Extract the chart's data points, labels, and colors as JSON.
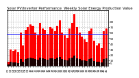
{
  "title": "Solar PV/Inverter Performance  Weekly Solar Energy Production Value",
  "bar_values": [
    1.5,
    6.0,
    5.5,
    6.0,
    5.0,
    12.0,
    7.5,
    13.0,
    14.0,
    15.0,
    14.5,
    12.0,
    11.0,
    15.5,
    13.5,
    13.0,
    11.5,
    14.0,
    13.5,
    12.5,
    14.5,
    16.5,
    12.0,
    11.0,
    10.0,
    13.5,
    15.5,
    18.5,
    14.0,
    12.0,
    10.5,
    9.5,
    8.5,
    12.5,
    13.5,
    9.0,
    7.5,
    8.0,
    6.5,
    12.5,
    13.5
  ],
  "base_values": [
    0.5,
    1.5,
    1.2,
    1.4,
    1.0,
    2.5,
    1.6,
    2.6,
    2.8,
    3.0,
    2.8,
    2.4,
    2.2,
    3.1,
    2.7,
    2.6,
    2.3,
    2.8,
    2.7,
    2.5,
    2.9,
    3.3,
    2.4,
    2.2,
    2.0,
    2.7,
    3.1,
    3.7,
    2.8,
    2.4,
    2.1,
    1.9,
    1.7,
    2.5,
    2.7,
    1.8,
    1.5,
    1.6,
    1.3,
    2.5,
    2.7
  ],
  "avg_line": 11.5,
  "bar_color": "#FF0000",
  "base_color": "#1A0000",
  "avg_color": "#2222FF",
  "background_color": "#FFFFFF",
  "grid_color": "#888888",
  "ylim": [
    0,
    20
  ],
  "ytick_values": [
    80,
    70,
    60,
    50,
    40,
    30,
    20,
    10,
    5
  ],
  "ytick_positions": [
    16,
    14,
    12,
    10,
    8,
    6,
    4,
    2,
    1
  ],
  "title_fontsize": 3.8,
  "tick_fontsize": 3.0
}
